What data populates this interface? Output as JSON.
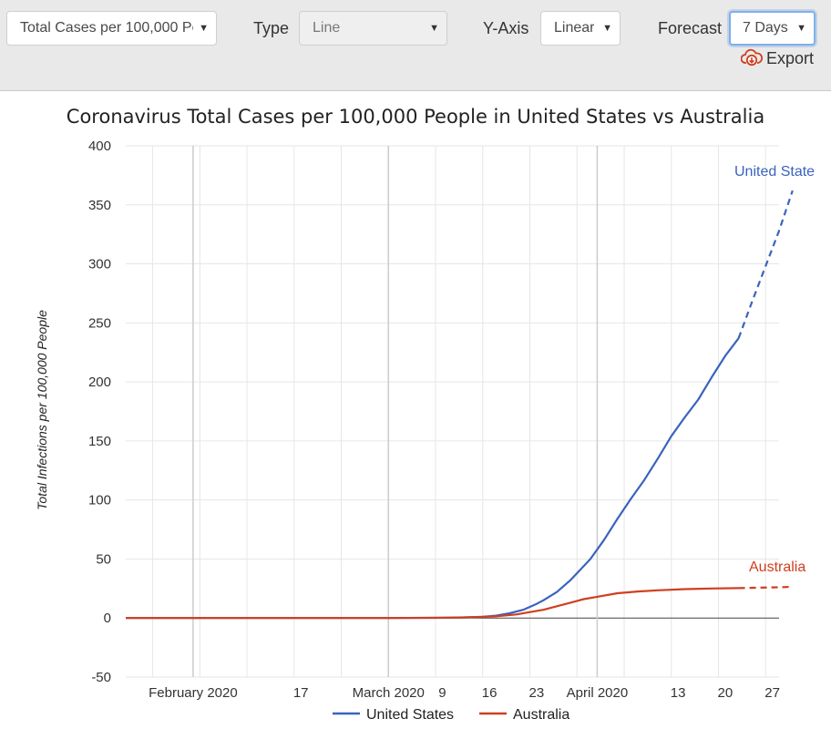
{
  "toolbar": {
    "metric": {
      "value": "Total Cases per 100,000 Pe"
    },
    "type": {
      "label": "Type",
      "value": "Line"
    },
    "yaxis": {
      "label": "Y-Axis",
      "value": "Linear"
    },
    "forecast": {
      "label": "Forecast",
      "value": "7 Days"
    },
    "export_label": "Export"
  },
  "colors": {
    "us": "#3b63bd",
    "australia": "#cf3f1f",
    "grid": "#e6e6e6",
    "major_grid": "#cccccc"
  },
  "chart_data": {
    "type": "line",
    "title": "Coronavirus Total Cases per 100,000 People in United States vs Australia",
    "ylabel": "Total Infections per 100,000 People",
    "ylim": [
      -50,
      400
    ],
    "yticks": [
      -50,
      0,
      50,
      100,
      150,
      200,
      250,
      300,
      350,
      400
    ],
    "x_range": [
      "2020-01-22",
      "2020-04-28"
    ],
    "x_tick_labels": [
      {
        "date": "2020-02-01",
        "label": "February 2020"
      },
      {
        "date": "2020-02-17",
        "label": "17"
      },
      {
        "date": "2020-03-01",
        "label": "March 2020"
      },
      {
        "date": "2020-03-09",
        "label": "9"
      },
      {
        "date": "2020-03-16",
        "label": "16"
      },
      {
        "date": "2020-03-23",
        "label": "23"
      },
      {
        "date": "2020-04-01",
        "label": "April 2020"
      },
      {
        "date": "2020-04-13",
        "label": "13"
      },
      {
        "date": "2020-04-20",
        "label": "20"
      },
      {
        "date": "2020-04-27",
        "label": "27"
      }
    ],
    "legend": "bottom",
    "series": [
      {
        "name": "United States",
        "end_label": "United State",
        "points": [
          [
            "2020-01-22",
            0
          ],
          [
            "2020-02-15",
            0
          ],
          [
            "2020-03-01",
            0
          ],
          [
            "2020-03-08",
            0.2
          ],
          [
            "2020-03-12",
            0.5
          ],
          [
            "2020-03-15",
            1
          ],
          [
            "2020-03-17",
            2
          ],
          [
            "2020-03-19",
            4
          ],
          [
            "2020-03-21",
            7
          ],
          [
            "2020-03-23",
            12
          ],
          [
            "2020-03-24",
            15
          ],
          [
            "2020-03-26",
            22
          ],
          [
            "2020-03-28",
            32
          ],
          [
            "2020-03-31",
            50
          ],
          [
            "2020-04-02",
            66
          ],
          [
            "2020-04-04",
            84
          ],
          [
            "2020-04-06",
            101
          ],
          [
            "2020-04-08",
            117
          ],
          [
            "2020-04-10",
            135
          ],
          [
            "2020-04-12",
            154
          ],
          [
            "2020-04-14",
            170
          ],
          [
            "2020-04-16",
            185
          ],
          [
            "2020-04-18",
            204
          ],
          [
            "2020-04-20",
            222
          ],
          [
            "2020-04-22",
            237
          ]
        ],
        "forecast": [
          [
            "2020-04-22",
            237
          ],
          [
            "2020-04-24",
            268
          ],
          [
            "2020-04-26",
            298
          ],
          [
            "2020-04-28",
            328
          ],
          [
            "2020-04-30",
            362
          ]
        ]
      },
      {
        "name": "Australia",
        "end_label": "Australia",
        "points": [
          [
            "2020-01-22",
            0
          ],
          [
            "2020-03-01",
            0
          ],
          [
            "2020-03-10",
            0.3
          ],
          [
            "2020-03-14",
            0.8
          ],
          [
            "2020-03-17",
            1.5
          ],
          [
            "2020-03-20",
            3
          ],
          [
            "2020-03-22",
            5
          ],
          [
            "2020-03-24",
            7
          ],
          [
            "2020-03-26",
            10
          ],
          [
            "2020-03-28",
            13
          ],
          [
            "2020-03-30",
            16
          ],
          [
            "2020-04-01",
            18
          ],
          [
            "2020-04-04",
            21
          ],
          [
            "2020-04-07",
            22.5
          ],
          [
            "2020-04-10",
            23.5
          ],
          [
            "2020-04-14",
            24.5
          ],
          [
            "2020-04-18",
            25
          ],
          [
            "2020-04-22",
            25.3
          ]
        ],
        "forecast": [
          [
            "2020-04-22",
            25.3
          ],
          [
            "2020-04-25",
            25.7
          ],
          [
            "2020-04-28",
            26
          ],
          [
            "2020-04-30",
            26.5
          ]
        ]
      }
    ]
  }
}
